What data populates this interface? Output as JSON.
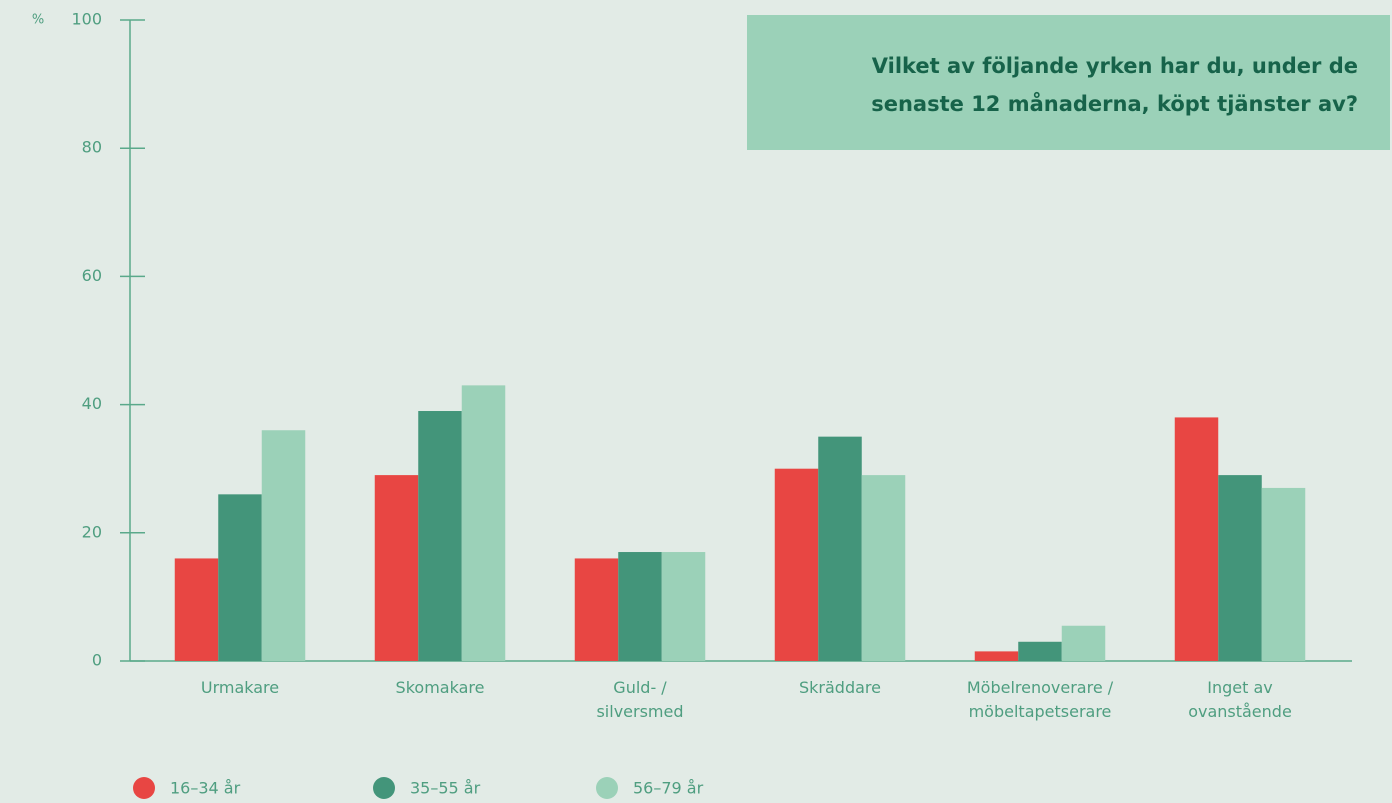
{
  "chart_data": {
    "type": "bar",
    "title": "Vilket av följande yrken har du, under de senaste 12 månaderna, köpt tjänster av?",
    "y_label": "%",
    "categories": [
      "Urmakare",
      "Skomakare",
      "Guld- /\nsilversmed",
      "Skräddare",
      "Möbelrenoverare /\nmöbeltapetserare",
      "Inget av\novanstående"
    ],
    "series": [
      {
        "name": "16–34 år",
        "color": "#e84643",
        "values": [
          16,
          29,
          16,
          30,
          1.5,
          38
        ]
      },
      {
        "name": "35–55 år",
        "color": "#43957a",
        "values": [
          26,
          39,
          17,
          35,
          3,
          29
        ]
      },
      {
        "name": "56–79 år",
        "color": "#9bd1b8",
        "values": [
          36,
          43,
          17,
          29,
          5.5,
          27
        ]
      }
    ],
    "ylim": [
      0,
      100
    ],
    "yticks": [
      0,
      20,
      40,
      60,
      80,
      100
    ],
    "grid": false,
    "legend": "bottom"
  }
}
